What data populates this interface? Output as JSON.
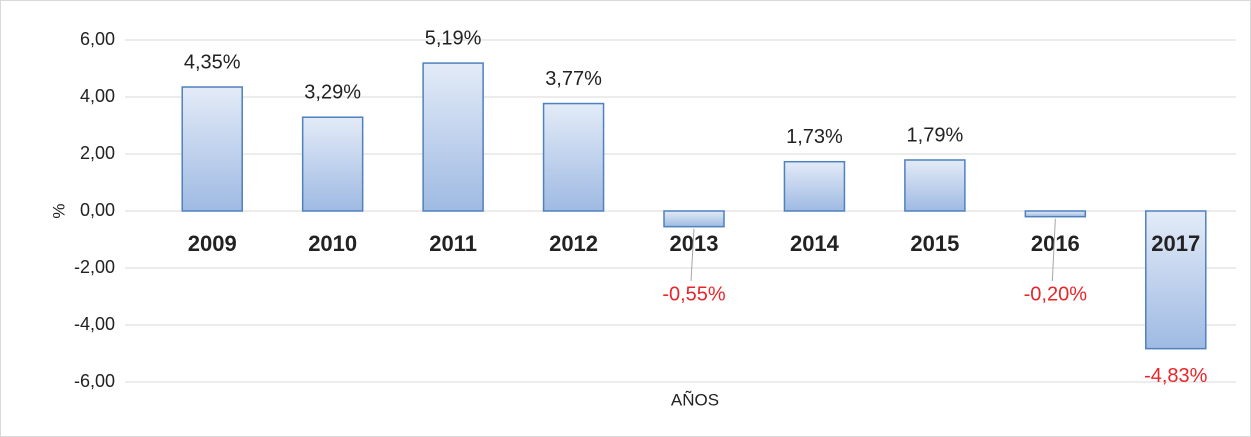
{
  "chart_data": {
    "type": "bar",
    "categories": [
      "2009",
      "2010",
      "2011",
      "2012",
      "2013",
      "2014",
      "2015",
      "2016",
      "2017"
    ],
    "values": [
      4.35,
      3.29,
      5.19,
      3.77,
      -0.55,
      1.73,
      1.79,
      -0.2,
      -4.83
    ],
    "value_labels": [
      "4,35%",
      "3,29%",
      "5,19%",
      "3,77%",
      "-0,55%",
      "1,73%",
      "1,79%",
      "-0,20%",
      "-4,83%"
    ],
    "color": "#4f81bd",
    "label_color": "#222222",
    "negative_label_color": "#e8262a",
    "ylim": [
      -6,
      6
    ],
    "yticks": [
      {
        "value": -6,
        "label": "-6,00"
      },
      {
        "value": -4,
        "label": "-4,00"
      },
      {
        "value": -2,
        "label": "-2,00"
      },
      {
        "value": 0,
        "label": "0,00"
      },
      {
        "value": 2,
        "label": "2,00"
      },
      {
        "value": 4,
        "label": "4,00"
      },
      {
        "value": 6,
        "label": "6,00"
      }
    ],
    "grid": true,
    "y_axis_label": "%",
    "x_axis_label": "AÑOS"
  }
}
